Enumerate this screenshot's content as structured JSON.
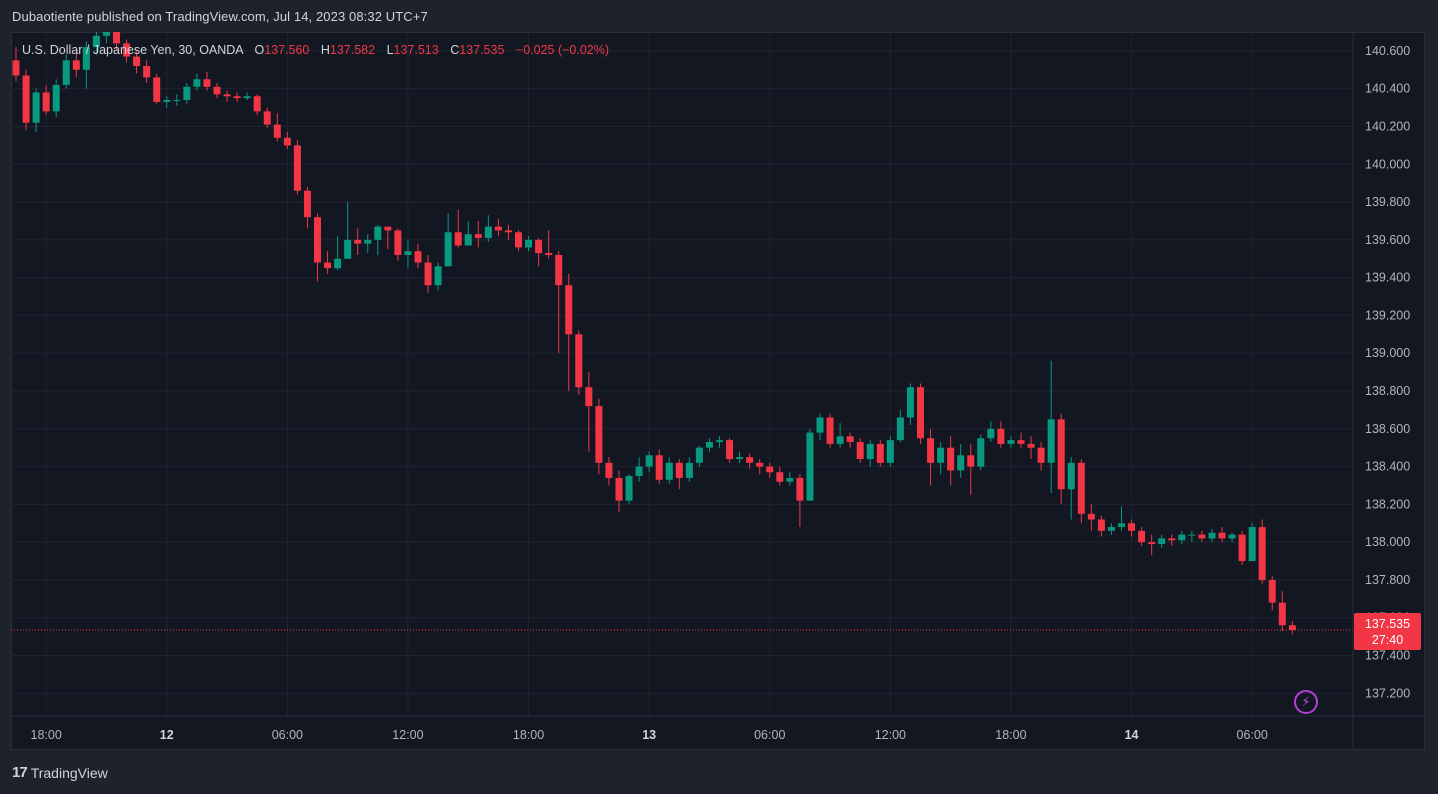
{
  "header": {
    "published_text": "Dubaotiente published on TradingView.com, Jul 14, 2023 08:32 UTC+7"
  },
  "legend": {
    "symbol": "U.S. Dollar / Japanese Yen, 30, OANDA",
    "open_label": "O",
    "open": "137.560",
    "high_label": "H",
    "high": "137.582",
    "low_label": "L",
    "low": "137.513",
    "close_label": "C",
    "close": "137.535",
    "change": "−0.025 (−0.02%)"
  },
  "price_tag": {
    "price": "137.535",
    "countdown": "27:40"
  },
  "footer": {
    "brand": "TradingView",
    "logo_mark": "17"
  },
  "icons": {
    "alert": "lightning-bolt-icon"
  },
  "colors": {
    "up": "#089981",
    "down": "#f23645",
    "background": "#131722",
    "grid": "#1f2430",
    "text": "#b2b5be",
    "last_price_line": "#f23645"
  },
  "chart_data": {
    "type": "candlestick",
    "symbol": "USDJPY",
    "interval": "30",
    "ylim": [
      137.08,
      140.7
    ],
    "yticks": [
      "137.200",
      "137.400",
      "137.600",
      "137.800",
      "138.000",
      "138.200",
      "138.400",
      "138.600",
      "138.800",
      "139.000",
      "139.200",
      "139.400",
      "139.600",
      "139.800",
      "140.000",
      "140.200",
      "140.400",
      "140.600"
    ],
    "xticks": [
      {
        "label": "18:00",
        "bar": 3,
        "bold": false
      },
      {
        "label": "12",
        "bar": 15,
        "bold": true
      },
      {
        "label": "06:00",
        "bar": 27,
        "bold": false
      },
      {
        "label": "12:00",
        "bar": 39,
        "bold": false
      },
      {
        "label": "18:00",
        "bar": 51,
        "bold": false
      },
      {
        "label": "13",
        "bar": 63,
        "bold": true
      },
      {
        "label": "06:00",
        "bar": 75,
        "bold": false
      },
      {
        "label": "12:00",
        "bar": 87,
        "bold": false
      },
      {
        "label": "18:00",
        "bar": 99,
        "bold": false
      },
      {
        "label": "14",
        "bar": 111,
        "bold": true
      },
      {
        "label": "06:00",
        "bar": 123,
        "bold": false
      }
    ],
    "last_price": 137.535,
    "candles": [
      [
        140.55,
        140.47,
        140.62,
        140.44
      ],
      [
        140.47,
        140.22,
        140.5,
        140.18
      ],
      [
        140.22,
        140.38,
        140.4,
        140.17
      ],
      [
        140.38,
        140.28,
        140.42,
        140.26
      ],
      [
        140.28,
        140.42,
        140.45,
        140.25
      ],
      [
        140.42,
        140.55,
        140.58,
        140.4
      ],
      [
        140.55,
        140.5,
        140.6,
        140.46
      ],
      [
        140.5,
        140.62,
        140.65,
        140.4
      ],
      [
        140.62,
        140.68,
        140.72,
        140.58
      ],
      [
        140.68,
        140.74,
        140.78,
        140.64
      ],
      [
        140.74,
        140.64,
        140.76,
        140.6
      ],
      [
        140.64,
        140.57,
        140.66,
        140.54
      ],
      [
        140.57,
        140.52,
        140.6,
        140.48
      ],
      [
        140.52,
        140.46,
        140.55,
        140.43
      ],
      [
        140.46,
        140.33,
        140.48,
        140.32
      ],
      [
        140.33,
        140.34,
        140.36,
        140.3
      ],
      [
        140.34,
        140.34,
        140.37,
        140.31
      ],
      [
        140.34,
        140.41,
        140.43,
        140.32
      ],
      [
        140.41,
        140.45,
        140.48,
        140.39
      ],
      [
        140.45,
        140.41,
        140.49,
        140.39
      ],
      [
        140.41,
        140.37,
        140.43,
        140.35
      ],
      [
        140.37,
        140.36,
        140.39,
        140.33
      ],
      [
        140.36,
        140.35,
        140.38,
        140.33
      ],
      [
        140.35,
        140.36,
        140.38,
        140.34
      ],
      [
        140.36,
        140.28,
        140.37,
        140.26
      ],
      [
        140.28,
        140.21,
        140.3,
        140.19
      ],
      [
        140.21,
        140.14,
        140.27,
        140.12
      ],
      [
        140.14,
        140.1,
        140.17,
        140.08
      ],
      [
        140.1,
        139.86,
        140.13,
        139.84
      ],
      [
        139.86,
        139.72,
        139.88,
        139.66
      ],
      [
        139.72,
        139.48,
        139.74,
        139.38
      ],
      [
        139.48,
        139.45,
        139.54,
        139.42
      ],
      [
        139.45,
        139.5,
        139.62,
        139.44
      ],
      [
        139.5,
        139.6,
        139.8,
        139.5
      ],
      [
        139.6,
        139.58,
        139.66,
        139.52
      ],
      [
        139.58,
        139.6,
        139.63,
        139.53
      ],
      [
        139.6,
        139.67,
        139.68,
        139.52
      ],
      [
        139.67,
        139.65,
        139.67,
        139.55
      ],
      [
        139.65,
        139.52,
        139.66,
        139.49
      ],
      [
        139.52,
        139.54,
        139.6,
        139.45
      ],
      [
        139.54,
        139.48,
        139.58,
        139.45
      ],
      [
        139.48,
        139.36,
        139.52,
        139.32
      ],
      [
        139.36,
        139.46,
        139.48,
        139.33
      ],
      [
        139.46,
        139.64,
        139.74,
        139.46
      ],
      [
        139.64,
        139.57,
        139.76,
        139.56
      ],
      [
        139.57,
        139.63,
        139.7,
        139.57
      ],
      [
        139.63,
        139.61,
        139.7,
        139.56
      ],
      [
        139.61,
        139.67,
        139.73,
        139.59
      ],
      [
        139.67,
        139.65,
        139.71,
        139.62
      ],
      [
        139.65,
        139.64,
        139.68,
        139.6
      ],
      [
        139.64,
        139.56,
        139.65,
        139.54
      ],
      [
        139.56,
        139.6,
        139.62,
        139.54
      ],
      [
        139.6,
        139.53,
        139.61,
        139.46
      ],
      [
        139.53,
        139.52,
        139.65,
        139.5
      ],
      [
        139.52,
        139.36,
        139.54,
        139.0
      ],
      [
        139.36,
        139.1,
        139.42,
        138.8
      ],
      [
        139.1,
        138.82,
        139.12,
        138.78
      ],
      [
        138.82,
        138.72,
        138.9,
        138.48
      ],
      [
        138.72,
        138.42,
        138.76,
        138.36
      ],
      [
        138.42,
        138.34,
        138.45,
        138.3
      ],
      [
        138.34,
        138.22,
        138.38,
        138.16
      ],
      [
        138.22,
        138.35,
        138.36,
        138.2
      ],
      [
        138.35,
        138.4,
        138.45,
        138.32
      ],
      [
        138.4,
        138.46,
        138.48,
        138.37
      ],
      [
        138.46,
        138.33,
        138.49,
        138.31
      ],
      [
        138.33,
        138.42,
        138.45,
        138.31
      ],
      [
        138.42,
        138.34,
        138.44,
        138.28
      ],
      [
        138.34,
        138.42,
        138.45,
        138.32
      ],
      [
        138.42,
        138.5,
        138.51,
        138.4
      ],
      [
        138.5,
        138.53,
        138.55,
        138.48
      ],
      [
        138.53,
        138.54,
        138.56,
        138.5
      ],
      [
        138.54,
        138.44,
        138.55,
        138.42
      ],
      [
        138.44,
        138.45,
        138.48,
        138.42
      ],
      [
        138.45,
        138.42,
        138.47,
        138.39
      ],
      [
        138.42,
        138.4,
        138.44,
        138.36
      ],
      [
        138.4,
        138.37,
        138.42,
        138.34
      ],
      [
        138.37,
        138.32,
        138.4,
        138.3
      ],
      [
        138.32,
        138.34,
        138.37,
        138.3
      ],
      [
        138.34,
        138.22,
        138.36,
        138.08
      ],
      [
        138.22,
        138.58,
        138.6,
        138.22
      ],
      [
        138.58,
        138.66,
        138.68,
        138.54
      ],
      [
        138.66,
        138.52,
        138.68,
        138.5
      ],
      [
        138.52,
        138.56,
        138.63,
        138.5
      ],
      [
        138.56,
        138.53,
        138.58,
        138.5
      ],
      [
        138.53,
        138.44,
        138.55,
        138.42
      ],
      [
        138.44,
        138.52,
        138.54,
        138.4
      ],
      [
        138.52,
        138.42,
        138.54,
        138.4
      ],
      [
        138.42,
        138.54,
        138.56,
        138.4
      ],
      [
        138.54,
        138.66,
        138.7,
        138.53
      ],
      [
        138.66,
        138.82,
        138.84,
        138.62
      ],
      [
        138.82,
        138.55,
        138.84,
        138.52
      ],
      [
        138.55,
        138.42,
        138.6,
        138.3
      ],
      [
        138.42,
        138.5,
        138.53,
        138.36
      ],
      [
        138.5,
        138.38,
        138.56,
        138.3
      ],
      [
        138.38,
        138.46,
        138.52,
        138.34
      ],
      [
        138.46,
        138.4,
        138.52,
        138.25
      ],
      [
        138.4,
        138.55,
        138.57,
        138.38
      ],
      [
        138.55,
        138.6,
        138.64,
        138.53
      ],
      [
        138.6,
        138.52,
        138.64,
        138.5
      ],
      [
        138.52,
        138.54,
        138.56,
        138.5
      ],
      [
        138.54,
        138.52,
        138.58,
        138.5
      ],
      [
        138.52,
        138.5,
        138.56,
        138.44
      ],
      [
        138.5,
        138.42,
        138.53,
        138.38
      ],
      [
        138.42,
        138.65,
        138.96,
        138.26
      ],
      [
        138.65,
        138.28,
        138.68,
        138.2
      ],
      [
        138.28,
        138.42,
        138.45,
        138.12
      ],
      [
        138.42,
        138.15,
        138.44,
        138.1
      ],
      [
        138.15,
        138.12,
        138.2,
        138.06
      ],
      [
        138.12,
        138.06,
        138.14,
        138.03
      ],
      [
        138.06,
        138.08,
        138.1,
        138.04
      ],
      [
        138.08,
        138.1,
        138.19,
        138.06
      ],
      [
        138.1,
        138.06,
        138.12,
        138.03
      ],
      [
        138.06,
        138.0,
        138.08,
        137.98
      ],
      [
        138.0,
        137.99,
        138.04,
        137.93
      ],
      [
        137.99,
        138.02,
        138.04,
        137.97
      ],
      [
        138.02,
        138.01,
        138.04,
        137.98
      ],
      [
        138.01,
        138.04,
        138.06,
        137.99
      ],
      [
        138.04,
        138.04,
        138.06,
        138.0
      ],
      [
        138.04,
        138.02,
        138.06,
        138.0
      ],
      [
        138.02,
        138.05,
        138.07,
        138.0
      ],
      [
        138.05,
        138.02,
        138.08,
        138.0
      ],
      [
        138.02,
        138.04,
        138.05,
        138.0
      ],
      [
        138.04,
        137.9,
        138.06,
        137.88
      ],
      [
        137.9,
        138.08,
        138.1,
        137.9
      ],
      [
        138.08,
        137.8,
        138.12,
        137.78
      ],
      [
        137.8,
        137.68,
        137.82,
        137.64
      ],
      [
        137.68,
        137.56,
        137.74,
        137.53
      ],
      [
        137.56,
        137.535,
        137.582,
        137.513
      ]
    ]
  }
}
